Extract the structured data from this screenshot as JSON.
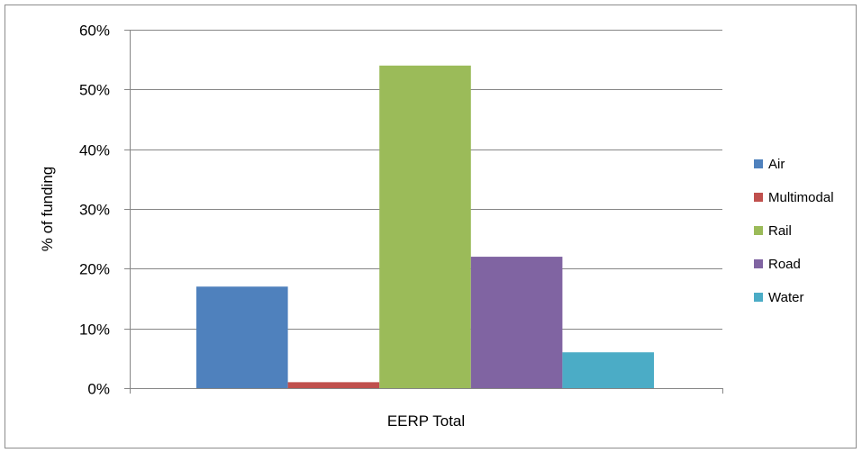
{
  "chart_data": {
    "type": "bar",
    "title": "",
    "xlabel": "",
    "ylabel": "% of funding",
    "categories": [
      "EERP Total"
    ],
    "ylim": [
      0,
      60
    ],
    "y_tick_labels": [
      "0%",
      "10%",
      "20%",
      "30%",
      "40%",
      "50%",
      "60%"
    ],
    "grid": true,
    "legend_position": "right",
    "series": [
      {
        "name": "Air",
        "values": [
          17
        ],
        "color": "#4f81bd"
      },
      {
        "name": "Multimodal",
        "values": [
          1
        ],
        "color": "#c0504d"
      },
      {
        "name": "Rail",
        "values": [
          54
        ],
        "color": "#9bbb59"
      },
      {
        "name": "Road",
        "values": [
          22
        ],
        "color": "#8064a2"
      },
      {
        "name": "Water",
        "values": [
          6
        ],
        "color": "#4bacc6"
      }
    ]
  }
}
